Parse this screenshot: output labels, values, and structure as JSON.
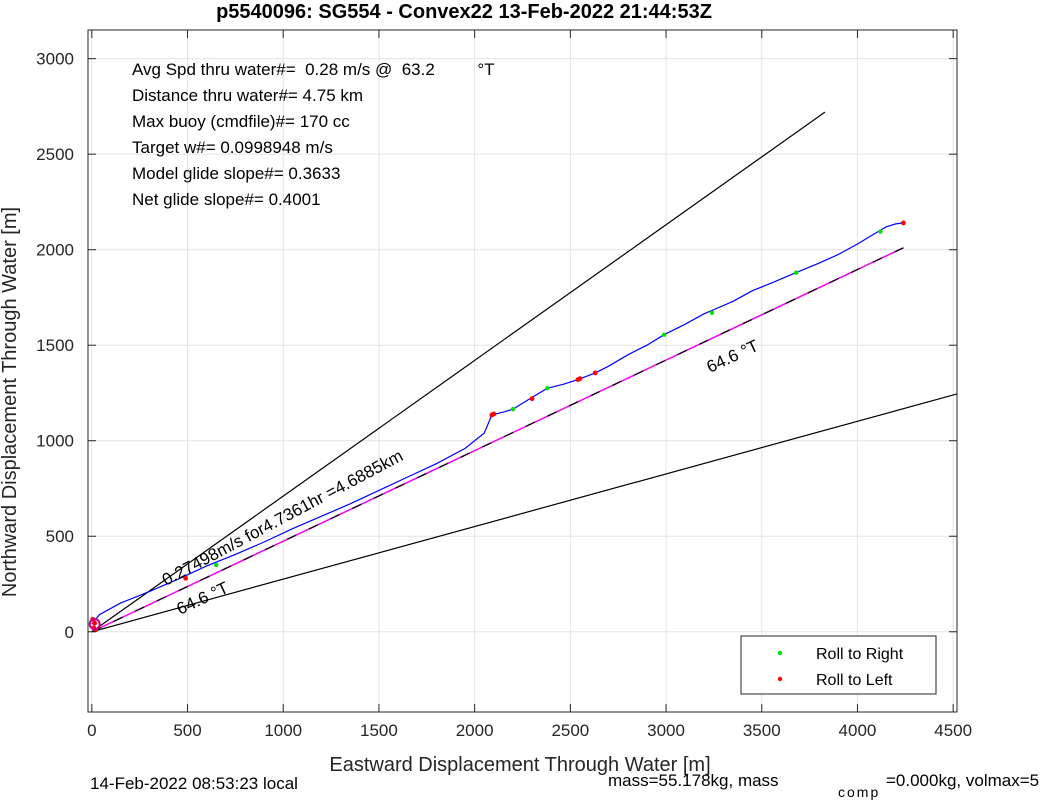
{
  "title": "p5540096: SG554 - Convex22 13-Feb-2022 21:44:53Z",
  "xlabel": "Eastward Displacement Through Water [m]",
  "ylabel": "Northward Displacement Through Water [m]",
  "stats": [
    "Avg Spd thru water#=  0.28 m/s @  63.2         °T",
    "Distance thru water#=  4.75 km",
    "Max buoy (cmdfile)#= 170 cc",
    "Target w#= 0.0998948 m/s",
    "Model glide slope#= 0.3633",
    "Net glide slope#= 0.4001"
  ],
  "annotations": {
    "heading_upper": "64.6 °T",
    "heading_lower": "64.6 °T",
    "speed_line": "0.27498m/s for4.7361hr =4.6885km"
  },
  "footer": {
    "local_time": "14-Feb-2022 08:53:23 local",
    "mass_prefix": "mass=55.178kg, mass",
    "mass_sub": "comp",
    "mass_suffix": "=0.000kg, volmax=5"
  },
  "legend": [
    {
      "label": "Roll to Right",
      "color": "#00e000"
    },
    {
      "label": "Roll to Left",
      "color": "#ff0000"
    }
  ],
  "chart_data": {
    "type": "line",
    "xlim": [
      -20,
      4520
    ],
    "ylim": [
      -420,
      3150
    ],
    "xticks": [
      0,
      500,
      1000,
      1500,
      2000,
      2500,
      3000,
      3500,
      4000,
      4500
    ],
    "yticks": [
      0,
      500,
      1000,
      1500,
      2000,
      2500,
      3000
    ],
    "grid": true,
    "legend_position": "bottom-right",
    "cone_lines": [
      {
        "x": [
          0,
          3830
        ],
        "y": [
          0,
          2720
        ],
        "color": "#000000"
      },
      {
        "x": [
          0,
          4520
        ],
        "y": [
          0,
          1245
        ],
        "color": "#000000"
      },
      {
        "x": [
          0,
          4240
        ],
        "y": [
          0,
          2010
        ],
        "color": "#000000",
        "dashed": true
      }
    ],
    "model_line": {
      "x": [
        0,
        4240
      ],
      "y": [
        0,
        2010
      ],
      "color": "#ff00ff"
    },
    "track": {
      "color": "#0000ff",
      "x": [
        0,
        40,
        150,
        300,
        450,
        600,
        750,
        900,
        1050,
        1200,
        1350,
        1500,
        1650,
        1800,
        1950,
        2050,
        2090,
        2150,
        2200,
        2280,
        2380,
        2460,
        2540,
        2630,
        2700,
        2800,
        2900,
        2990,
        3100,
        3200,
        3270,
        3350,
        3450,
        3550,
        3680,
        3800,
        3900,
        4000,
        4100,
        4150,
        4200,
        4240
      ],
      "y": [
        40,
        90,
        150,
        210,
        275,
        345,
        405,
        470,
        540,
        605,
        670,
        740,
        810,
        880,
        960,
        1040,
        1135,
        1150,
        1165,
        1215,
        1275,
        1295,
        1320,
        1355,
        1390,
        1450,
        1500,
        1555,
        1610,
        1665,
        1695,
        1730,
        1785,
        1825,
        1880,
        1930,
        1975,
        2030,
        2090,
        2120,
        2135,
        2140
      ]
    },
    "roll_right": {
      "x": [
        650,
        2200,
        2380,
        2990,
        3240,
        3680,
        4120
      ],
      "y": [
        350,
        1165,
        1275,
        1555,
        1670,
        1880,
        2095
      ]
    },
    "roll_left": {
      "x": [
        10,
        15,
        5,
        20,
        490,
        2090,
        2100,
        2300,
        2540,
        2550,
        2630,
        4240
      ],
      "y": [
        20,
        45,
        65,
        10,
        280,
        1135,
        1140,
        1220,
        1320,
        1325,
        1355,
        2140
      ]
    }
  }
}
